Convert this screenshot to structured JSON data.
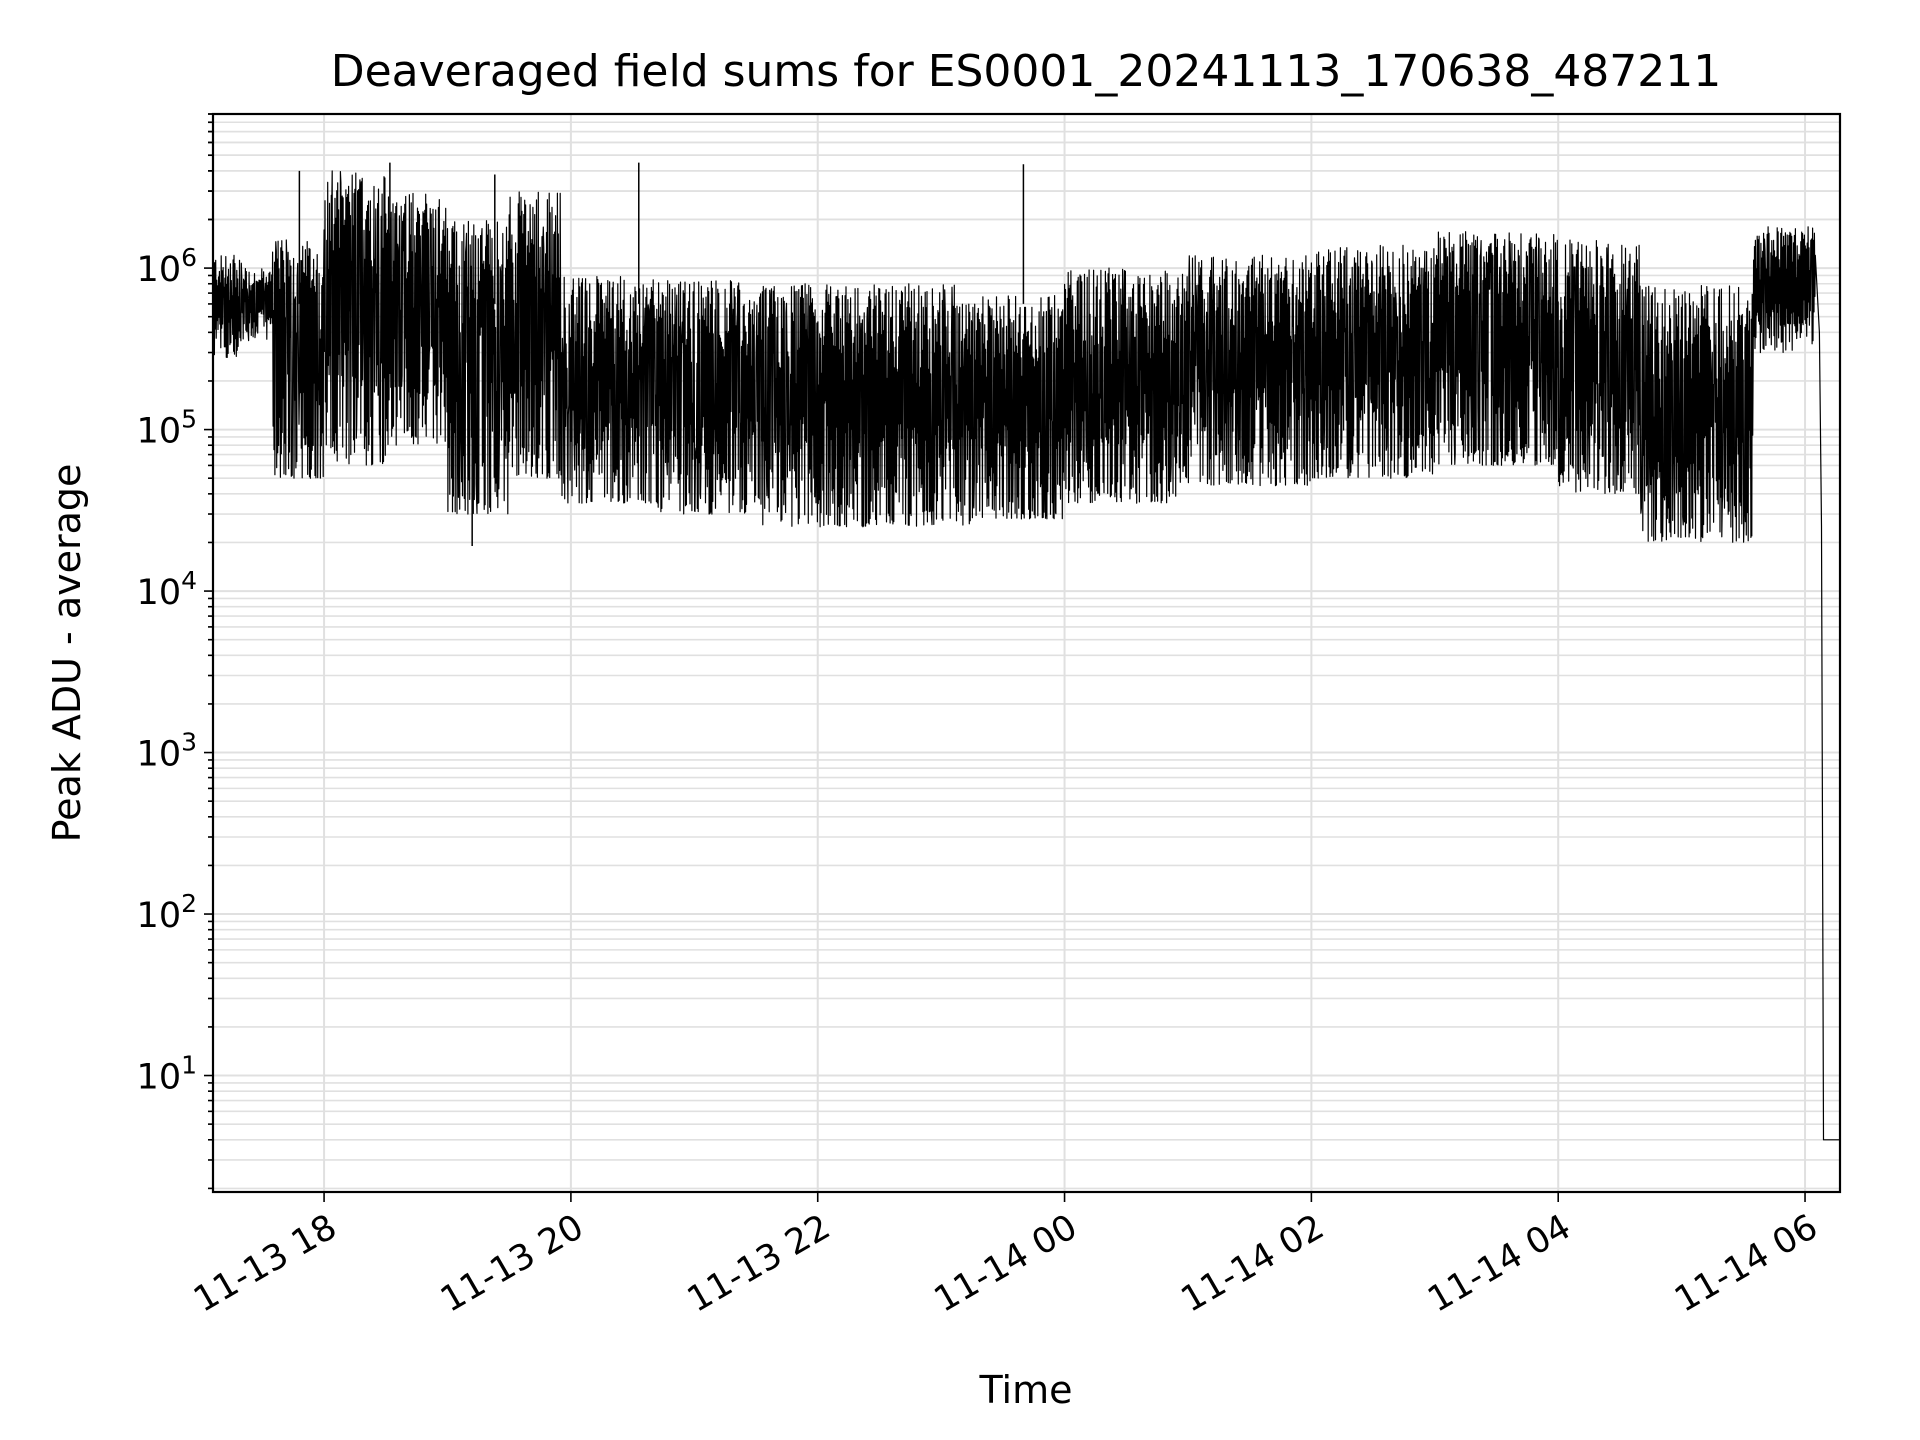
{
  "chart_data": {
    "type": "line",
    "title": "Deaveraged field sums for ES0001_20241113_170638_487211",
    "xlabel": "Time",
    "ylabel": "Peak ADU - average",
    "yscale": "log",
    "ylim": [
      1.9,
      9000000
    ],
    "xlim": [
      "2024-11-13 17:06",
      "2024-11-14 06:17"
    ],
    "grid": true,
    "line_color": "#000000",
    "grid_color": "#e0e0e0",
    "x_ticks": [
      {
        "value": "2024-11-13 18:00",
        "label": "11-13 18"
      },
      {
        "value": "2024-11-13 20:00",
        "label": "11-13 20"
      },
      {
        "value": "2024-11-13 22:00",
        "label": "11-13 22"
      },
      {
        "value": "2024-11-14 00:00",
        "label": "11-14 00"
      },
      {
        "value": "2024-11-14 02:00",
        "label": "11-14 02"
      },
      {
        "value": "2024-11-14 04:00",
        "label": "11-14 04"
      },
      {
        "value": "2024-11-14 06:00",
        "label": "11-14 06"
      }
    ],
    "y_ticks": [
      {
        "value": 10,
        "base": "10",
        "exp": "1"
      },
      {
        "value": 100,
        "base": "10",
        "exp": "2"
      },
      {
        "value": 1000,
        "base": "10",
        "exp": "3"
      },
      {
        "value": 10000,
        "base": "10",
        "exp": "4"
      },
      {
        "value": 100000,
        "base": "10",
        "exp": "5"
      },
      {
        "value": 1000000,
        "base": "10",
        "exp": "6"
      }
    ],
    "series": [
      {
        "segments": [
          {
            "start": "2024-11-13 17:06",
            "end": "2024-11-13 17:20",
            "low": 280000,
            "high": 1200000
          },
          {
            "start": "2024-11-13 17:20",
            "end": "2024-11-13 17:35",
            "low": 350000,
            "high": 1000000
          },
          {
            "start": "2024-11-13 17:35",
            "end": "2024-11-13 18:00",
            "low": 50000,
            "high": 1500000
          },
          {
            "start": "2024-11-13 18:00",
            "end": "2024-11-13 18:30",
            "low": 60000,
            "high": 4000000
          },
          {
            "start": "2024-11-13 18:30",
            "end": "2024-11-13 19:00",
            "low": 80000,
            "high": 3000000
          },
          {
            "start": "2024-11-13 19:00",
            "end": "2024-11-13 19:30",
            "low": 30000,
            "high": 2000000
          },
          {
            "start": "2024-11-13 19:30",
            "end": "2024-11-13 19:55",
            "low": 50000,
            "high": 3000000
          },
          {
            "start": "2024-11-13 19:55",
            "end": "2024-11-13 20:40",
            "low": 35000,
            "high": 900000
          },
          {
            "start": "2024-11-13 20:40",
            "end": "2024-11-13 21:30",
            "low": 30000,
            "high": 850000
          },
          {
            "start": "2024-11-13 21:30",
            "end": "2024-11-13 23:15",
            "low": 25000,
            "high": 800000
          },
          {
            "start": "2024-11-13 23:15",
            "end": "2024-11-14 00:00",
            "low": 28000,
            "high": 700000
          },
          {
            "start": "2024-11-14 00:00",
            "end": "2024-11-14 01:00",
            "low": 35000,
            "high": 1000000
          },
          {
            "start": "2024-11-14 01:00",
            "end": "2024-11-14 02:00",
            "low": 45000,
            "high": 1200000
          },
          {
            "start": "2024-11-14 02:00",
            "end": "2024-11-14 03:00",
            "low": 50000,
            "high": 1400000
          },
          {
            "start": "2024-11-14 03:00",
            "end": "2024-11-14 04:00",
            "low": 60000,
            "high": 1700000
          },
          {
            "start": "2024-11-14 04:00",
            "end": "2024-11-14 04:40",
            "low": 40000,
            "high": 1500000
          },
          {
            "start": "2024-11-14 04:40",
            "end": "2024-11-14 05:35",
            "low": 20000,
            "high": 800000
          },
          {
            "start": "2024-11-14 05:35",
            "end": "2024-11-14 06:05",
            "low": 300000,
            "high": 1800000
          }
        ],
        "spikes": [
          {
            "time": "2024-11-13 17:48",
            "value": 4000000
          },
          {
            "time": "2024-11-13 18:32",
            "value": 4500000
          },
          {
            "time": "2024-11-13 19:12",
            "value": 19000
          },
          {
            "time": "2024-11-13 19:23",
            "value": 3800000
          },
          {
            "time": "2024-11-13 20:33",
            "value": 4500000
          },
          {
            "time": "2024-11-13 23:40",
            "value": 4400000
          }
        ],
        "tail": [
          {
            "time": "2024-11-14 06:05",
            "value": 1200000
          },
          {
            "time": "2024-11-14 06:07",
            "value": 400000
          },
          {
            "time": "2024-11-14 06:08",
            "value": 25000
          },
          {
            "time": "2024-11-14 06:09",
            "value": 4
          },
          {
            "time": "2024-11-14 06:17",
            "value": 4
          }
        ]
      }
    ]
  }
}
